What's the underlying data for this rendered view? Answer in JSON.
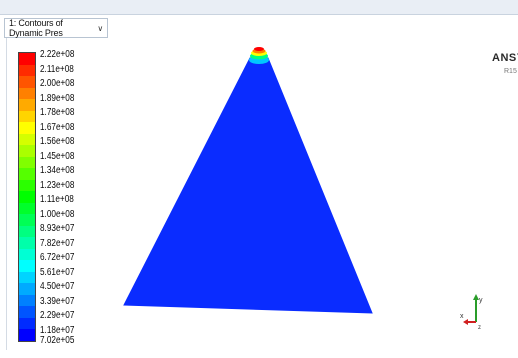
{
  "toolbar": {
    "view_selector": "1: Contours of Dynamic Pres",
    "chevron_icon": "chevron-down-icon"
  },
  "brand": {
    "name": "ANSYS",
    "sub": "R15"
  },
  "legend": {
    "colors": [
      "#ff0000",
      "#ff2b00",
      "#ff5500",
      "#ff8000",
      "#ffaa00",
      "#ffd400",
      "#ffff00",
      "#d4ff00",
      "#aaff00",
      "#80ff00",
      "#55ff00",
      "#2bff00",
      "#00ff00",
      "#00ff2b",
      "#00ff55",
      "#00ff80",
      "#00ffaa",
      "#00ffd4",
      "#00ffff",
      "#00d4ff",
      "#00aaff",
      "#0080ff",
      "#0055ff",
      "#002bff",
      "#0000ff"
    ],
    "labels": [
      "2.22e+08",
      "2.11e+08",
      "2.00e+08",
      "1.89e+08",
      "1.78e+08",
      "1.67e+08",
      "1.56e+08",
      "1.45e+08",
      "1.34e+08",
      "1.23e+08",
      "1.11e+08",
      "1.00e+08",
      "8.93e+07",
      "7.82e+07",
      "6.72e+07",
      "5.61e+07",
      "4.50e+07",
      "3.39e+07",
      "2.29e+07",
      "1.18e+07",
      "7.02e+05"
    ]
  },
  "colors": {
    "domain_fill": "#0a2cff",
    "background": "#ffffff"
  },
  "axis_triad": {
    "x_label": "x",
    "y_label": "y",
    "z_label": "z"
  }
}
